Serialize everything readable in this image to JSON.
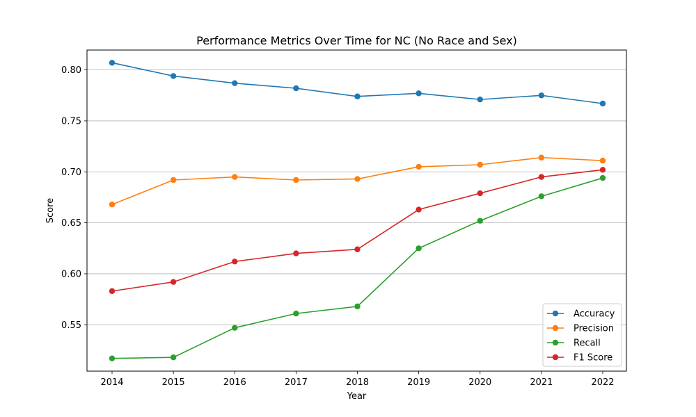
{
  "chart_data": {
    "type": "line",
    "title": "Performance Metrics Over Time for NC (No Race and Sex)",
    "xlabel": "Year",
    "ylabel": "Score",
    "x": [
      "2014",
      "2015",
      "2016",
      "2017",
      "2018",
      "2019",
      "2020",
      "2021",
      "2022"
    ],
    "yticks": [
      "0.55",
      "0.60",
      "0.65",
      "0.70",
      "0.75",
      "0.80"
    ],
    "ylim": [
      0.5045,
      0.8195
    ],
    "grid": "y-axis horizontal lines",
    "legend_position": "lower-right",
    "series": [
      {
        "name": "Accuracy",
        "color": "#1f77b4",
        "values": [
          0.807,
          0.794,
          0.787,
          0.782,
          0.774,
          0.777,
          0.771,
          0.775,
          0.767
        ]
      },
      {
        "name": "Precision",
        "color": "#ff7f0e",
        "values": [
          0.668,
          0.692,
          0.695,
          0.692,
          0.693,
          0.705,
          0.707,
          0.714,
          0.711
        ]
      },
      {
        "name": "Recall",
        "color": "#2ca02c",
        "values": [
          0.517,
          0.518,
          0.547,
          0.561,
          0.568,
          0.625,
          0.652,
          0.676,
          0.694
        ]
      },
      {
        "name": "F1 Score",
        "color": "#d62728",
        "values": [
          0.583,
          0.592,
          0.612,
          0.62,
          0.624,
          0.663,
          0.679,
          0.695,
          0.702
        ]
      }
    ]
  }
}
